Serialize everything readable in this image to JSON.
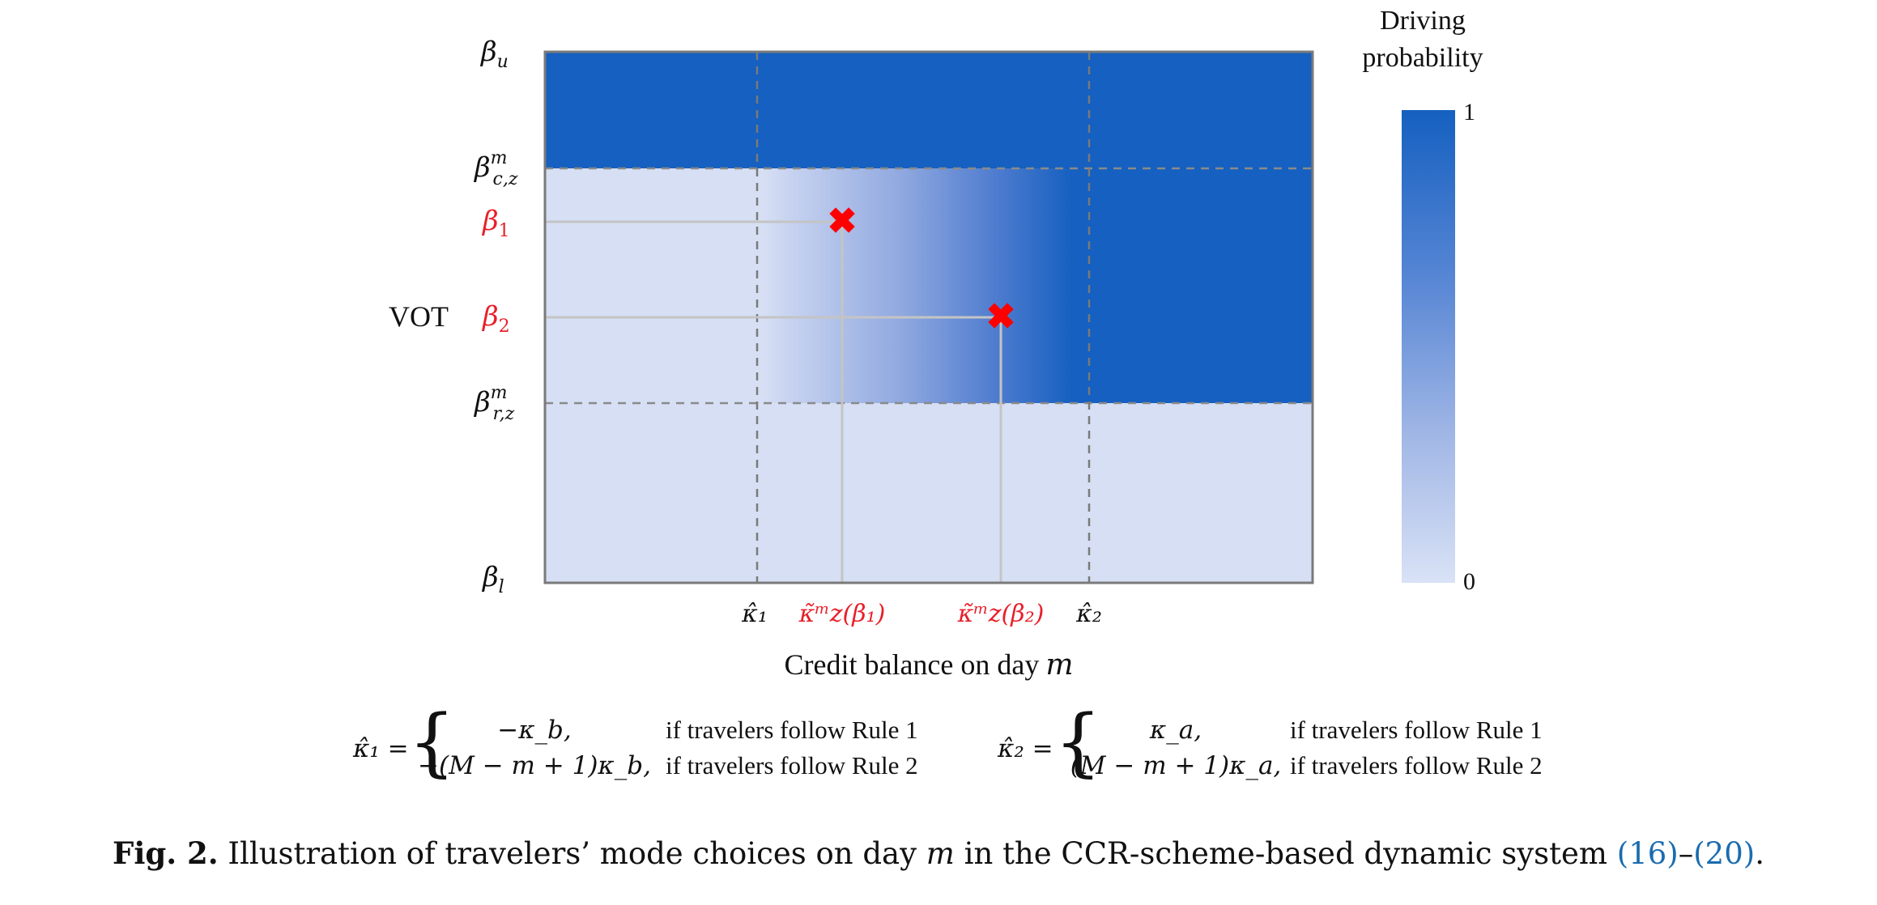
{
  "diagram": {
    "y_axis": {
      "title": "VOT",
      "ticks": [
        {
          "base": "β",
          "sub": "u",
          "sup": "",
          "color": "#111111"
        },
        {
          "base": "β",
          "sub": "c,z",
          "sup": "m",
          "color": "#111111"
        },
        {
          "base": "β",
          "sub": "1",
          "sup": "",
          "color": "#e8202a"
        },
        {
          "base": "β",
          "sub": "2",
          "sup": "",
          "color": "#e8202a"
        },
        {
          "base": "β",
          "sub": "r,z",
          "sup": "m",
          "color": "#111111"
        },
        {
          "base": "β",
          "sub": "l",
          "sup": "",
          "color": "#111111"
        }
      ]
    },
    "x_axis": {
      "title": "Credit balance on day",
      "title_var": "m",
      "ticks": [
        {
          "text": "κ̂₁",
          "color": "#111111"
        },
        {
          "text": "κ̃ᵐz(β₁)",
          "color": "#e8202a"
        },
        {
          "text": "κ̃ᵐz(β₂)",
          "color": "#e8202a"
        },
        {
          "text": "κ̂₂",
          "color": "#111111"
        }
      ]
    },
    "markers": [
      {
        "name": "marker-beta1",
        "symbol": "✖",
        "color": "#ff0000"
      },
      {
        "name": "marker-beta2",
        "symbol": "✖",
        "color": "#ff0000"
      }
    ],
    "colors": {
      "high": "#1560c0",
      "low": "#d6dff4",
      "dashed": "#8a8a8a",
      "guide": "#bdbdbd",
      "frame": "#7a7a7a"
    },
    "colorbar": {
      "title_line1": "Driving",
      "title_line2": "probability",
      "max_label": "1",
      "min_label": "0"
    }
  },
  "equations": {
    "k1": {
      "lhs": "κ̂₁ =",
      "case1": "−κ_b,",
      "case2": "−(M − m + 1)κ_b,",
      "cond1": "if travelers follow Rule 1",
      "cond2": "if travelers follow Rule 2"
    },
    "k2": {
      "lhs": "κ̂₂ =",
      "case1": "κ_a,",
      "case2": "(M − m + 1)κ_a,",
      "cond1": "if travelers follow Rule 1",
      "cond2": "if travelers follow Rule 2"
    }
  },
  "caption": {
    "label": "Fig. 2.",
    "text": "Illustration of travelers’ mode choices on day",
    "var": "m",
    "text2": "in the CCR-scheme-based dynamic system",
    "ref1": "(16)",
    "dash": "–",
    "ref2": "(20)",
    "end": "."
  }
}
